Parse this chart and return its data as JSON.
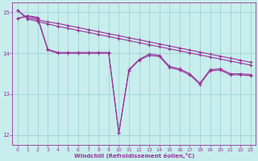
{
  "title": "",
  "xlabel": "Windchill (Refroidissement éolien,°C)",
  "xlim": [
    -0.5,
    23.5
  ],
  "ylim": [
    11.75,
    15.25
  ],
  "yticks": [
    12,
    13,
    14,
    15
  ],
  "xticks": [
    0,
    1,
    2,
    3,
    4,
    5,
    6,
    7,
    8,
    9,
    10,
    11,
    12,
    13,
    14,
    15,
    16,
    17,
    18,
    19,
    20,
    21,
    22,
    23
  ],
  "bg_color": "#c8eded",
  "line_color": "#993399",
  "grid_color": "#99cccc",
  "line1": [
    15.05,
    14.87,
    14.82,
    14.77,
    14.73,
    14.68,
    14.63,
    14.58,
    14.53,
    14.48,
    14.43,
    14.38,
    14.33,
    14.28,
    14.23,
    14.18,
    14.13,
    14.08,
    14.03,
    13.98,
    13.93,
    13.88,
    13.83,
    13.78
  ],
  "line2": [
    15.05,
    14.84,
    14.78,
    14.72,
    14.66,
    14.61,
    14.56,
    14.51,
    14.46,
    14.41,
    14.36,
    14.31,
    14.26,
    14.21,
    14.16,
    14.11,
    14.06,
    14.01,
    13.96,
    13.91,
    13.86,
    13.81,
    13.76,
    13.71
  ],
  "line3": [
    14.85,
    14.92,
    14.88,
    14.1,
    14.02,
    14.02,
    14.02,
    14.02,
    14.02,
    14.02,
    12.05,
    13.6,
    13.85,
    13.98,
    13.95,
    13.68,
    13.62,
    13.5,
    13.27,
    13.6,
    13.62,
    13.5,
    13.5,
    13.48
  ],
  "line4": [
    14.85,
    14.91,
    14.85,
    14.08,
    14.0,
    14.0,
    14.0,
    14.0,
    14.0,
    14.0,
    12.05,
    13.58,
    13.83,
    13.95,
    13.92,
    13.65,
    13.59,
    13.47,
    13.24,
    13.57,
    13.59,
    13.47,
    13.47,
    13.45
  ],
  "marker": "+",
  "markersize": 3,
  "markeredgewidth": 0.8,
  "linewidth": 0.8,
  "tick_fontsize": 4.5,
  "xlabel_fontsize": 5.0
}
